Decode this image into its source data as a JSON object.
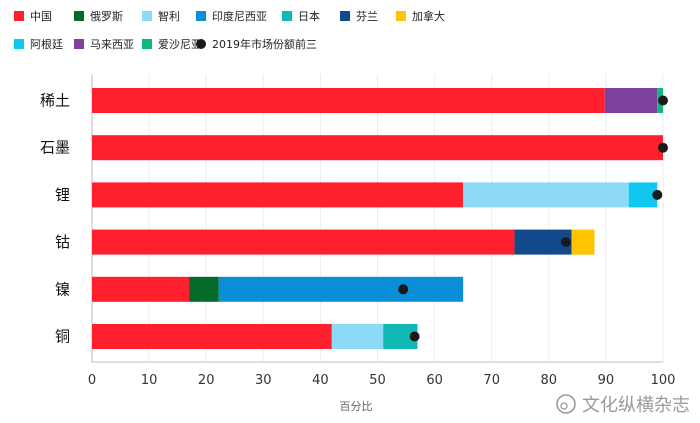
{
  "chart_data": {
    "type": "bar",
    "orientation": "horizontal",
    "stacked": true,
    "categories": [
      "稀土",
      "石墨",
      "锂",
      "钴",
      "镍",
      "铜"
    ],
    "series": [
      {
        "name": "中国",
        "color": "#ff1f2d",
        "values": [
          89.8,
          100,
          65,
          74,
          17,
          42
        ]
      },
      {
        "name": "俄罗斯",
        "color": "#046a2a",
        "values": [
          0,
          0,
          0,
          0,
          5.2,
          0
        ]
      },
      {
        "name": "智利",
        "color": "#8ddaf7",
        "values": [
          0,
          0,
          29,
          0,
          0,
          9
        ]
      },
      {
        "name": "印度尼西亚",
        "color": "#0a8fd6",
        "values": [
          0,
          0,
          0,
          0,
          42.8,
          0
        ]
      },
      {
        "name": "日本",
        "color": "#10b9b4",
        "values": [
          0,
          0,
          0,
          0,
          0,
          6
        ]
      },
      {
        "name": "芬兰",
        "color": "#104a8c",
        "values": [
          0,
          0,
          0,
          10,
          0,
          0
        ]
      },
      {
        "name": "加拿大",
        "color": "#ffc400",
        "values": [
          0,
          0,
          0,
          4,
          0,
          0
        ]
      },
      {
        "name": "阿根廷",
        "color": "#0fc8ef",
        "values": [
          0,
          0,
          5,
          0,
          0,
          0
        ]
      },
      {
        "name": "马来西亚",
        "color": "#7e409f",
        "values": [
          0,
          0,
          0,
          0,
          0,
          0
        ]
      },
      {
        "name": "爱沙尼亚",
        "color": "#0fb87a",
        "values": [
          0,
          0,
          0,
          0,
          0,
          0
        ]
      }
    ],
    "extra_segments": [
      {
        "category": "稀土",
        "series": "马来西亚",
        "value": 9.2
      },
      {
        "category": "稀土",
        "series": "爱沙尼亚",
        "value": 1
      }
    ],
    "markers": {
      "name": "2019年市场份额前三",
      "color": "#1a1a1a",
      "values": [
        100,
        100,
        99,
        83,
        54.5,
        56.5
      ]
    },
    "xlabel": "百分比",
    "xlim": [
      0,
      100
    ],
    "xticks": [
      0,
      10,
      20,
      30,
      40,
      50,
      60,
      70,
      80,
      90,
      100
    ],
    "grid": true,
    "legend_position": "top"
  },
  "watermark": "文化纵横杂志"
}
